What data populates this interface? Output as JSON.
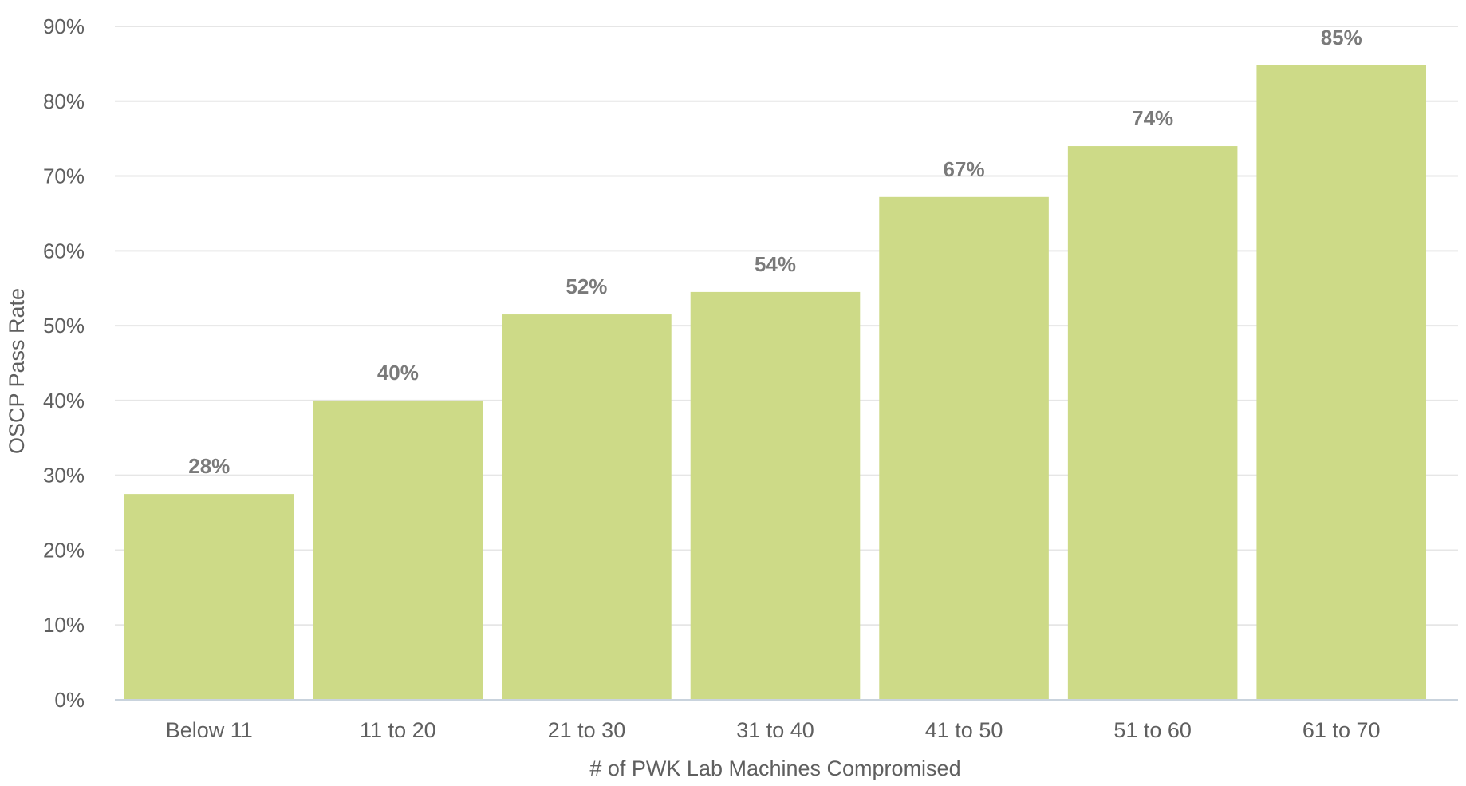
{
  "chart_data": {
    "type": "bar",
    "categories": [
      "Below 11",
      "11 to 20",
      "21 to 30",
      "31 to 40",
      "41 to 50",
      "51 to 60",
      "61 to 70"
    ],
    "values": [
      27.5,
      40,
      51.5,
      54.5,
      67.2,
      74,
      84.8
    ],
    "data_labels": [
      "28%",
      "40%",
      "52%",
      "54%",
      "67%",
      "74%",
      "85%"
    ],
    "title": "",
    "xlabel": "# of PWK Lab Machines Compromised",
    "ylabel": "OSCP Pass Rate",
    "ylim": [
      0,
      90
    ],
    "yticks": [
      0,
      10,
      20,
      30,
      40,
      50,
      60,
      70,
      80,
      90
    ],
    "ytick_labels": [
      "0%",
      "10%",
      "20%",
      "30%",
      "40%",
      "50%",
      "60%",
      "70%",
      "80%",
      "90%"
    ],
    "grid": true,
    "legend": "none",
    "colors": {
      "bar": "#cdda87",
      "grid": "#e6e6e6",
      "baseline": "#c9d3dd",
      "text": "#5f5f5f",
      "data_label": "#7a7a7a"
    }
  }
}
